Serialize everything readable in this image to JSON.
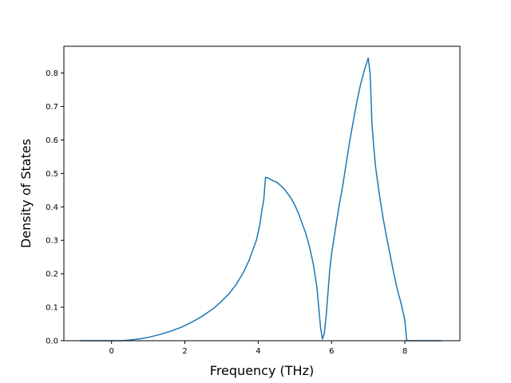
{
  "chart_data": {
    "type": "line",
    "title": "",
    "xlabel": "Frequency (THz)",
    "ylabel": "Density of States",
    "xlim": [
      -1.3,
      9.5
    ],
    "ylim": [
      0.0,
      0.88
    ],
    "xticks": [
      0,
      2,
      4,
      6,
      8
    ],
    "yticks": [
      0.0,
      0.1,
      0.2,
      0.3,
      0.4,
      0.5,
      0.6,
      0.7,
      0.8
    ],
    "xtick_labels": [
      "0",
      "2",
      "4",
      "6",
      "8"
    ],
    "ytick_labels": [
      "0.0",
      "0.1",
      "0.2",
      "0.3",
      "0.4",
      "0.5",
      "0.6",
      "0.7",
      "0.8"
    ],
    "grid": false,
    "legend": "none",
    "series": [
      {
        "color": "#1f77b4",
        "x": [
          -0.85,
          -0.5,
          0.0,
          0.3,
          0.5,
          0.8,
          1.0,
          1.3,
          1.6,
          1.9,
          2.2,
          2.5,
          2.8,
          3.0,
          3.2,
          3.4,
          3.6,
          3.75,
          3.85,
          3.95,
          4.05,
          4.1,
          4.15,
          4.2,
          4.3,
          4.4,
          4.5,
          4.6,
          4.7,
          4.8,
          4.9,
          5.0,
          5.1,
          5.2,
          5.3,
          5.4,
          5.5,
          5.6,
          5.65,
          5.7,
          5.75,
          5.8,
          5.85,
          5.9,
          5.95,
          6.0,
          6.1,
          6.2,
          6.3,
          6.4,
          6.5,
          6.6,
          6.7,
          6.8,
          6.9,
          7.0,
          7.05,
          7.08,
          7.1,
          7.15,
          7.2,
          7.3,
          7.4,
          7.5,
          7.6,
          7.7,
          7.8,
          7.9,
          8.0,
          8.05,
          8.1,
          8.15,
          8.2,
          8.25,
          8.5,
          9.0
        ],
        "values": [
          0.0,
          0.0,
          0.0,
          0.0,
          0.002,
          0.006,
          0.01,
          0.018,
          0.028,
          0.04,
          0.056,
          0.075,
          0.098,
          0.118,
          0.14,
          0.168,
          0.205,
          0.24,
          0.27,
          0.3,
          0.35,
          0.39,
          0.42,
          0.488,
          0.485,
          0.478,
          0.474,
          0.465,
          0.455,
          0.44,
          0.425,
          0.405,
          0.38,
          0.35,
          0.32,
          0.28,
          0.23,
          0.16,
          0.1,
          0.04,
          0.005,
          0.02,
          0.07,
          0.14,
          0.21,
          0.26,
          0.33,
          0.4,
          0.46,
          0.53,
          0.6,
          0.66,
          0.72,
          0.77,
          0.81,
          0.845,
          0.8,
          0.72,
          0.65,
          0.58,
          0.52,
          0.44,
          0.37,
          0.31,
          0.255,
          0.2,
          0.15,
          0.11,
          0.06,
          0.0,
          0.0,
          0.0,
          0.0,
          0.0,
          0.0,
          0.0
        ]
      }
    ]
  }
}
